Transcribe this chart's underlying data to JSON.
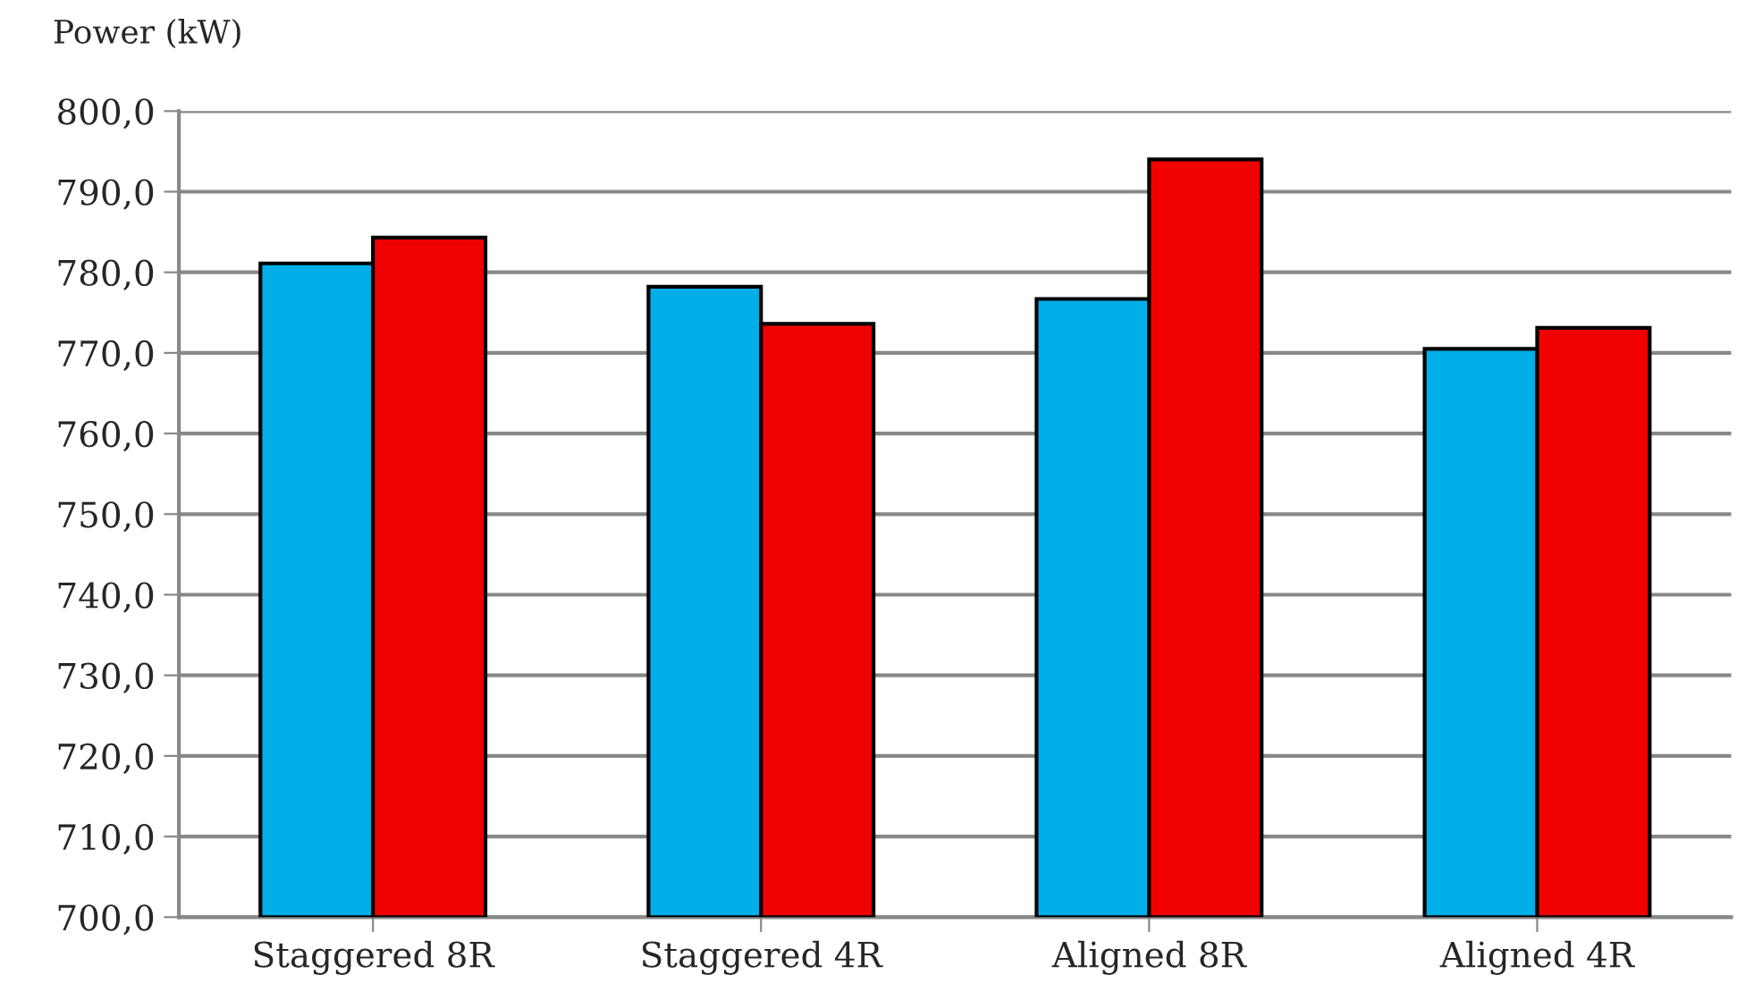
{
  "chart_data": {
    "type": "bar",
    "ylabel": "Power (kW)",
    "categories": [
      "Staggered 8R",
      "Staggered 4R",
      "Aligned 8R",
      "Aligned 4R"
    ],
    "series": [
      {
        "color": "#00aee8",
        "values": [
          781.1,
          778.2,
          776.7,
          770.5
        ]
      },
      {
        "color": "#f00000",
        "values": [
          784.3,
          773.6,
          794.0,
          773.1
        ]
      }
    ],
    "ylim": [
      700,
      800
    ],
    "yticks": [
      {
        "value": 700,
        "label": "700,0"
      },
      {
        "value": 710,
        "label": "710,0"
      },
      {
        "value": 720,
        "label": "720,0"
      },
      {
        "value": 730,
        "label": "730,0"
      },
      {
        "value": 740,
        "label": "740,0"
      },
      {
        "value": 750,
        "label": "750,0"
      },
      {
        "value": 760,
        "label": "760,0"
      },
      {
        "value": 770,
        "label": "770,0"
      },
      {
        "value": 780,
        "label": "780,0"
      },
      {
        "value": 790,
        "label": "790,0"
      },
      {
        "value": 800,
        "label": "800,0"
      }
    ],
    "grid": "y"
  }
}
